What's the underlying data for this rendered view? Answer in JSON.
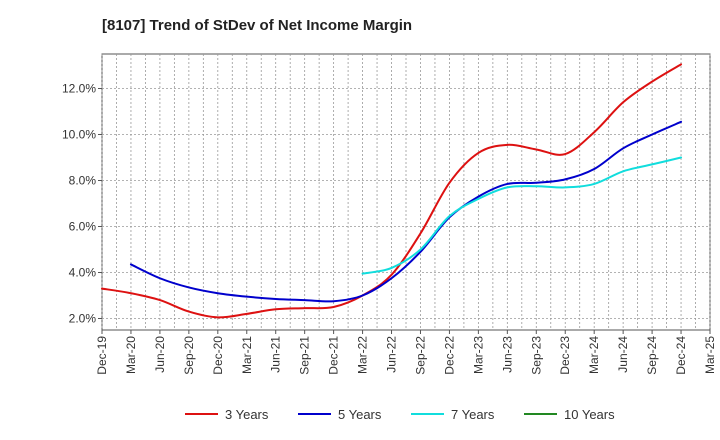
{
  "chart_data": {
    "type": "line",
    "title": "[8107]  Trend of StDev of Net Income Margin",
    "xlabel": "",
    "ylabel": "",
    "x_ticks": [
      "Dec-19",
      "Mar-20",
      "Jun-20",
      "Sep-20",
      "Dec-20",
      "Mar-21",
      "Jun-21",
      "Sep-21",
      "Dec-21",
      "Mar-22",
      "Jun-22",
      "Sep-22",
      "Dec-22",
      "Mar-23",
      "Jun-23",
      "Sep-23",
      "Dec-23",
      "Mar-24",
      "Jun-24",
      "Sep-24",
      "Dec-24",
      "Mar-25"
    ],
    "y_ticks": [
      "2.0%",
      "4.0%",
      "6.0%",
      "8.0%",
      "10.0%",
      "12.0%"
    ],
    "y_tick_values": [
      2,
      4,
      6,
      8,
      10,
      12
    ],
    "ylim": [
      1.5,
      13.5
    ],
    "grid": true,
    "legend_position": "bottom",
    "series": [
      {
        "name": "3 Years",
        "color": "#dd1111",
        "values": [
          3.3,
          3.1,
          2.8,
          2.3,
          2.05,
          2.2,
          2.4,
          2.45,
          2.5,
          3.0,
          3.9,
          5.7,
          7.9,
          9.2,
          9.55,
          9.35,
          9.15,
          10.1,
          11.4,
          12.3,
          13.05,
          null
        ]
      },
      {
        "name": "5 Years",
        "color": "#0000cc",
        "values": [
          null,
          4.35,
          3.75,
          3.35,
          3.1,
          2.95,
          2.85,
          2.8,
          2.75,
          3.0,
          3.75,
          4.9,
          6.4,
          7.3,
          7.85,
          7.9,
          8.05,
          8.5,
          9.4,
          10.0,
          10.55,
          null
        ]
      },
      {
        "name": "7 Years",
        "color": "#11dddd",
        "values": [
          null,
          null,
          null,
          null,
          null,
          null,
          null,
          null,
          null,
          3.95,
          4.2,
          5.0,
          6.45,
          7.2,
          7.7,
          7.75,
          7.7,
          7.85,
          8.4,
          8.7,
          9.0,
          null
        ]
      },
      {
        "name": "10 Years",
        "color": "#228822",
        "values": [
          null,
          null,
          null,
          null,
          null,
          null,
          null,
          null,
          null,
          null,
          null,
          null,
          null,
          null,
          null,
          null,
          null,
          null,
          null,
          null,
          null,
          null
        ]
      }
    ]
  }
}
